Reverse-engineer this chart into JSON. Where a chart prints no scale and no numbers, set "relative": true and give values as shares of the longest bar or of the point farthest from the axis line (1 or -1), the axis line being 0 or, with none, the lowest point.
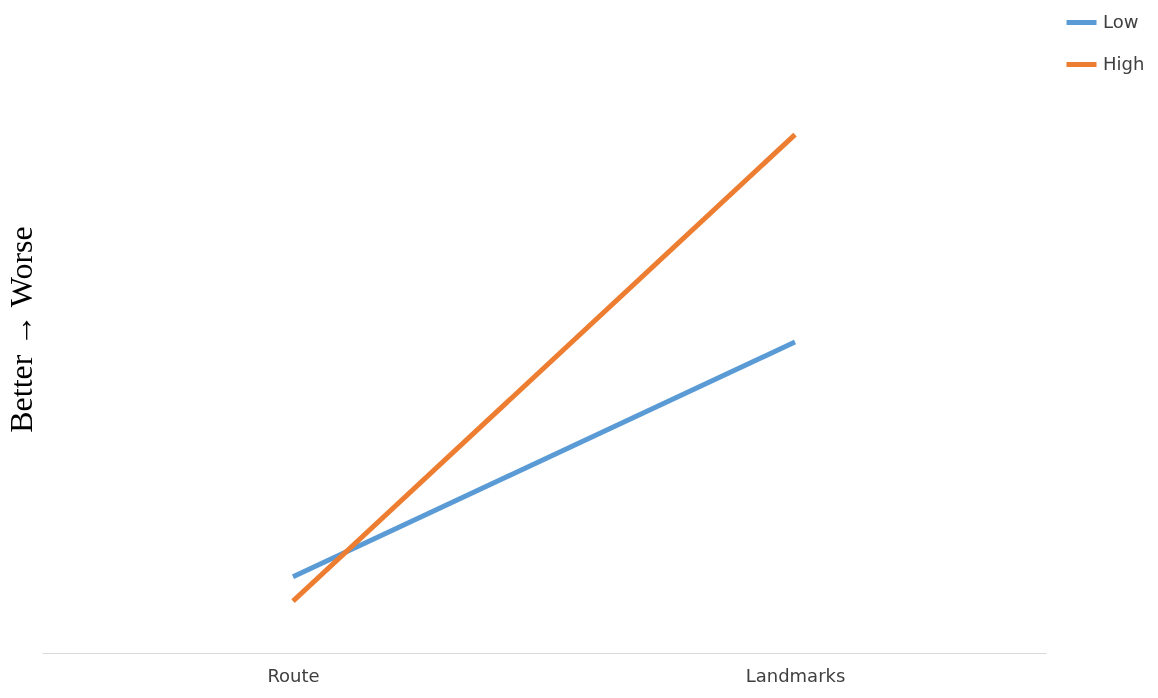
{
  "chart_data": {
    "type": "line",
    "ylabel": "Better → Worse",
    "categories": [
      "Route",
      "Landmarks"
    ],
    "relative": true,
    "legend": "right",
    "grid": false,
    "marker": "none",
    "line_style": "solid",
    "series": [
      {
        "name": "Low",
        "color": "#5b9bd5",
        "values": [
          0.147,
          0.6
        ]
      },
      {
        "name": "High",
        "color": "#ed7d31",
        "values": [
          0.1,
          1
        ]
      }
    ]
  }
}
